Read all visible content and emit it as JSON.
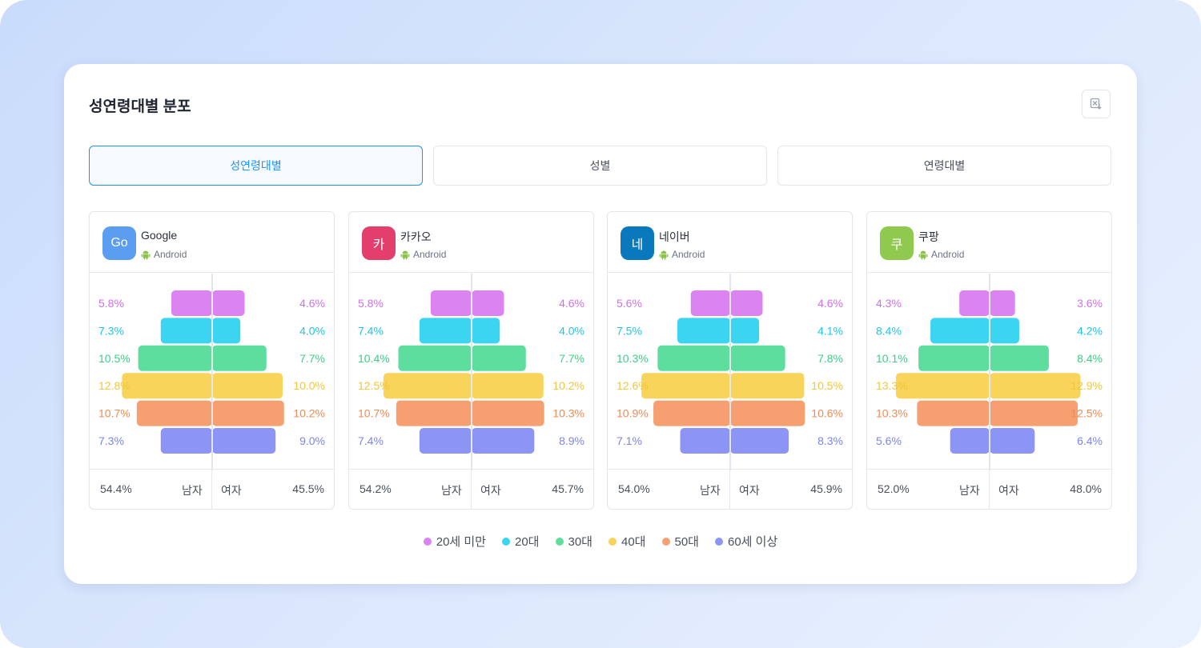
{
  "title": "성연령대별 분포",
  "tabs": [
    "성연령대별",
    "성별",
    "연령대별"
  ],
  "active_tab": 0,
  "legend": [
    "20세 미만",
    "20대",
    "30대",
    "40대",
    "50대",
    "60세 이상"
  ],
  "colors": [
    "#da83f1",
    "#3bd5f1",
    "#5dde9f",
    "#f8d45a",
    "#f6a071",
    "#8c94f6"
  ],
  "label_colors": [
    "#cf71ea",
    "#20c5e6",
    "#3fce87",
    "#f2c73b",
    "#f08b55",
    "#7b84f0"
  ],
  "footer": {
    "male": "남자",
    "female": "여자"
  },
  "chart_data": [
    {
      "type": "bar",
      "app": "Google",
      "icon_text": "Go",
      "icon_color": "#5b9df0",
      "os": "Android",
      "categories": [
        "20세 미만",
        "20대",
        "30대",
        "40대",
        "50대",
        "60세 이상"
      ],
      "series": [
        {
          "name": "남자",
          "values": [
            5.8,
            7.3,
            10.5,
            12.8,
            10.7,
            7.3
          ],
          "labels": [
            "5.8%",
            "7.3%",
            "10.5%",
            "12.8%",
            "10.7%",
            "7.3%"
          ]
        },
        {
          "name": "여자",
          "values": [
            4.6,
            4.0,
            7.7,
            10.0,
            10.2,
            9.0
          ],
          "labels": [
            "4.6%",
            "4.0%",
            "7.7%",
            "10.0%",
            "10.2%",
            "9.0%"
          ]
        }
      ],
      "male_total": "54.4%",
      "female_total": "45.5%"
    },
    {
      "type": "bar",
      "app": "카카오",
      "icon_text": "카",
      "icon_color": "#e33e6c",
      "os": "Android",
      "categories": [
        "20세 미만",
        "20대",
        "30대",
        "40대",
        "50대",
        "60세 이상"
      ],
      "series": [
        {
          "name": "남자",
          "values": [
            5.8,
            7.4,
            10.4,
            12.5,
            10.7,
            7.4
          ],
          "labels": [
            "5.8%",
            "7.4%",
            "10.4%",
            "12.5%",
            "10.7%",
            "7.4%"
          ]
        },
        {
          "name": "여자",
          "values": [
            4.6,
            4.0,
            7.7,
            10.2,
            10.3,
            8.9
          ],
          "labels": [
            "4.6%",
            "4.0%",
            "7.7%",
            "10.2%",
            "10.3%",
            "8.9%"
          ]
        }
      ],
      "male_total": "54.2%",
      "female_total": "45.7%"
    },
    {
      "type": "bar",
      "app": "네이버",
      "icon_text": "네",
      "icon_color": "#0a78bd",
      "os": "Android",
      "categories": [
        "20세 미만",
        "20대",
        "30대",
        "40대",
        "50대",
        "60세 이상"
      ],
      "series": [
        {
          "name": "남자",
          "values": [
            5.6,
            7.5,
            10.3,
            12.6,
            10.9,
            7.1
          ],
          "labels": [
            "5.6%",
            "7.5%",
            "10.3%",
            "12.6%",
            "10.9%",
            "7.1%"
          ]
        },
        {
          "name": "여자",
          "values": [
            4.6,
            4.1,
            7.8,
            10.5,
            10.6,
            8.3
          ],
          "labels": [
            "4.6%",
            "4.1%",
            "7.8%",
            "10.5%",
            "10.6%",
            "8.3%"
          ]
        }
      ],
      "male_total": "54.0%",
      "female_total": "45.9%"
    },
    {
      "type": "bar",
      "app": "쿠팡",
      "icon_text": "쿠",
      "icon_color": "#8fc94d",
      "os": "Android",
      "categories": [
        "20세 미만",
        "20대",
        "30대",
        "40대",
        "50대",
        "60세 이상"
      ],
      "series": [
        {
          "name": "남자",
          "values": [
            4.3,
            8.4,
            10.1,
            13.3,
            10.3,
            5.6
          ],
          "labels": [
            "4.3%",
            "8.4%",
            "10.1%",
            "13.3%",
            "10.3%",
            "5.6%"
          ]
        },
        {
          "name": "여자",
          "values": [
            3.6,
            4.2,
            8.4,
            12.9,
            12.5,
            6.4
          ],
          "labels": [
            "3.6%",
            "4.2%",
            "8.4%",
            "12.9%",
            "12.5%",
            "6.4%"
          ]
        }
      ],
      "male_total": "52.0%",
      "female_total": "48.0%"
    }
  ]
}
